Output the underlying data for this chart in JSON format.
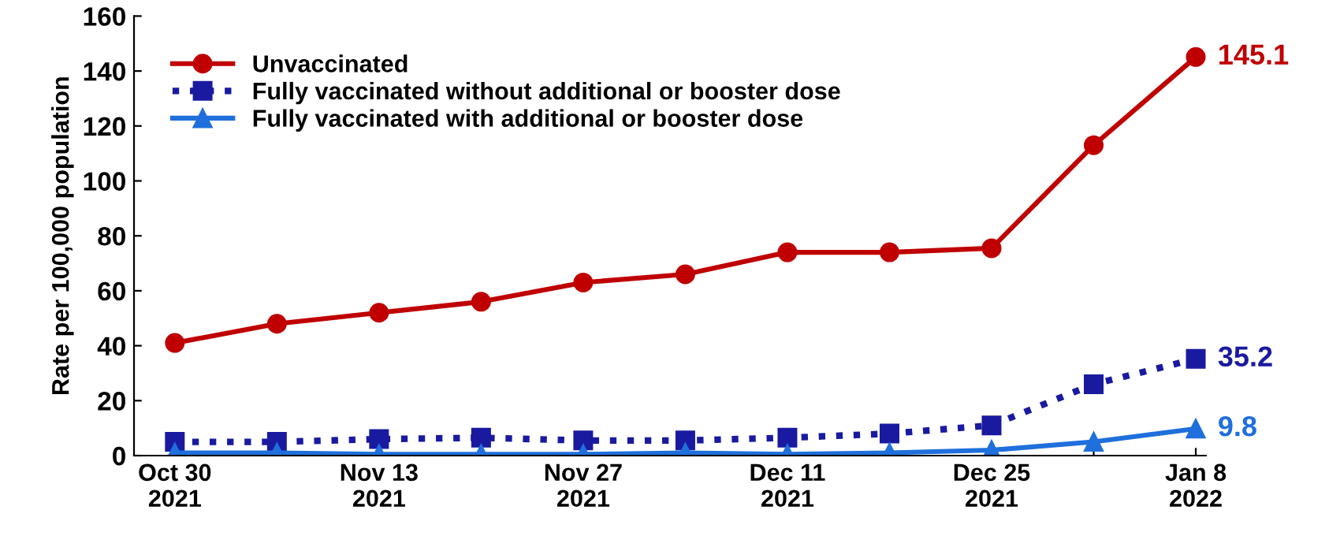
{
  "chart_data": {
    "type": "line",
    "ylabel": "Rate per 100,000 population",
    "categories": [
      "Oct 30\n2021",
      null,
      "Nov 13\n2021",
      null,
      "Nov 27\n2021",
      null,
      "Dec 11\n2021",
      null,
      "Dec 25\n2021",
      null,
      "Jan 8\n2022"
    ],
    "series": [
      {
        "name": "Unvaccinated",
        "color": "#c00000",
        "marker": "circle",
        "line_style": "solid",
        "values": [
          41,
          48,
          52,
          56,
          63,
          66,
          74,
          74,
          75.5,
          113,
          145.1
        ],
        "value_labels": [
          null,
          null,
          null,
          null,
          null,
          null,
          null,
          null,
          null,
          null,
          "145.1"
        ]
      },
      {
        "name": "Fully vaccinated without additional or booster dose",
        "color": "#1a1aa0",
        "marker": "square",
        "line_style": "dotted",
        "values": [
          5,
          5,
          6,
          6.5,
          5.5,
          5.5,
          6.5,
          8,
          11,
          26,
          35.2
        ],
        "value_labels": [
          null,
          null,
          null,
          null,
          null,
          null,
          null,
          null,
          null,
          null,
          "35.2"
        ]
      },
      {
        "name": "Fully vaccinated with additional or booster dose",
        "color": "#1f6fdc",
        "marker": "triangle",
        "line_style": "solid",
        "values": [
          1,
          1,
          0.5,
          0.5,
          0.5,
          1,
          0.5,
          1,
          2,
          5,
          9.8
        ],
        "value_labels": [
          null,
          null,
          null,
          null,
          null,
          null,
          null,
          null,
          null,
          null,
          "9.8"
        ]
      }
    ],
    "ylim": [
      0,
      160
    ],
    "yticks": [
      0,
      20,
      40,
      60,
      80,
      100,
      120,
      140,
      160
    ],
    "grid": false,
    "legend": "top left"
  }
}
